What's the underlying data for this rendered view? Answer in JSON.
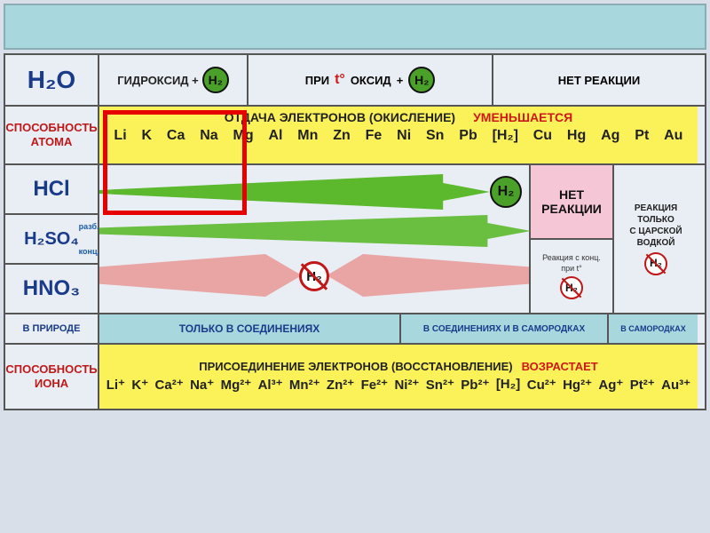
{
  "colors": {
    "page_bg": "#d8dfe8",
    "topband": "#a8d8de",
    "yellow": "#fbf25a",
    "green": "#5cb82c",
    "pink": "#e9a4a4",
    "pinkbox": "#f5c6d6",
    "red": "#d01818",
    "blue": "#1a3a8a",
    "teal": "#a8d8de",
    "redbox": "#e60000",
    "border": "#555555"
  },
  "row1": {
    "h2o": "H₂O",
    "hydroxide": "ГИДРОКСИД +",
    "h2": "H₂",
    "pri": "ПРИ",
    "temp": "t°",
    "oxide": "ОКСИД",
    "plus": "+",
    "noreact": "НЕТ РЕАКЦИИ"
  },
  "row2": {
    "label1": "СПОСОБНОСТЬ",
    "label2": "АТОМА",
    "title1": "ОТДАЧА ЭЛЕКТРОНОВ (ОКИСЛЕНИЕ)",
    "title2": "УМЕНЬШАЕТСЯ",
    "elements": [
      "Li",
      "K",
      "Ca",
      "Na",
      "Mg",
      "Al",
      "Mn",
      "Zn",
      "Fe",
      "Ni",
      "Sn",
      "Pb",
      "[H₂]",
      "Cu",
      "Hg",
      "Ag",
      "Pt",
      "Au"
    ]
  },
  "acids": {
    "hcl": "HCl",
    "h2so4": "H₂SO₄",
    "razb": "разб.",
    "konc": "конц.",
    "hno3": "HNO₃",
    "h2": "H₂",
    "noreact_big": "НЕТ",
    "noreact_big2": "РЕАКЦИИ",
    "react_conc1": "Реакция с конц.",
    "react_conc2": "при t°",
    "aqua1": "РЕАКЦИЯ",
    "aqua2": "ТОЛЬКО",
    "aqua3": "С ЦАРСКОЙ",
    "aqua4": "ВОДКОЙ"
  },
  "row6": {
    "label": "В ПРИРОДЕ",
    "c2": "ТОЛЬКО В СОЕДИНЕНИЯХ",
    "c3": "В СОЕДИНЕНИЯХ И В САМОРОДКАХ",
    "c4": "В САМОРОДКАХ"
  },
  "row7": {
    "label1": "СПОСОБНОСТЬ",
    "label2": "ИОНА",
    "title1": "ПРИСОЕДИНЕНИЕ ЭЛЕКТРОНОВ (ВОССТАНОВЛЕНИЕ)",
    "title2": "ВОЗРАСТАЕТ",
    "ions": [
      "Li⁺",
      "K⁺",
      "Ca²⁺",
      "Na⁺",
      "Mg²⁺",
      "Al³⁺",
      "Mn²⁺",
      "Zn²⁺",
      "Fe²⁺",
      "Ni²⁺",
      "Sn²⁺",
      "Pb²⁺",
      "[H₂]",
      "Cu²⁺",
      "Hg²⁺",
      "Ag⁺",
      "Pt²⁺",
      "Au³⁺"
    ]
  }
}
